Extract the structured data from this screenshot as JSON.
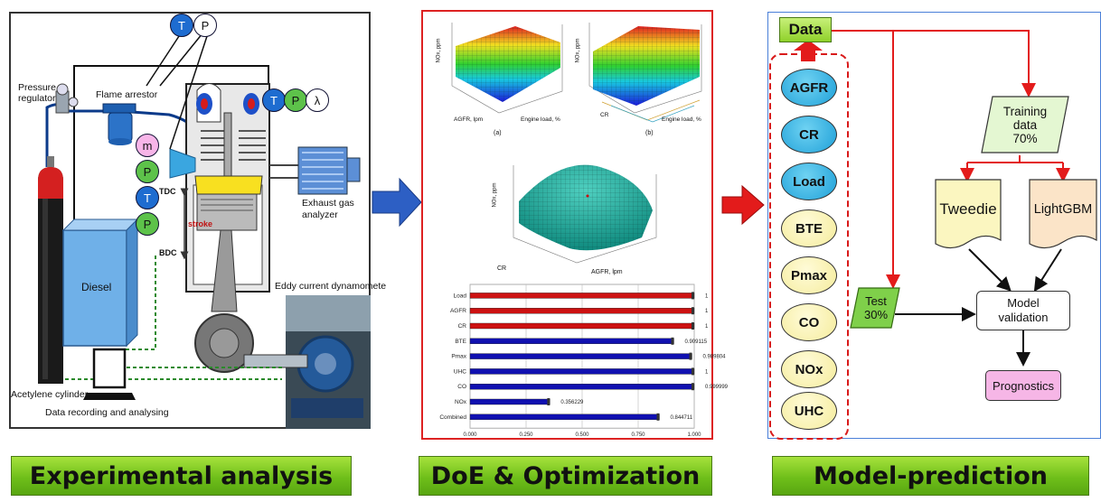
{
  "panel1": {
    "labels": {
      "pressure_regulator": "Pressure regulator",
      "flame_arrestor": "Flame arrestor",
      "exhaust_gas_analyzer": "Exhaust gas analyzer",
      "eddy_current_dynamometer": "Eddy current dynamomete",
      "diesel": "Diesel",
      "acetylene_cylinder": "Acetylene cylinder",
      "data_recording": "Data recording and analysing",
      "tdc": "TDC",
      "bdc": "BDC",
      "stroke": "stroke"
    },
    "sensors": {
      "t": "T",
      "p": "P",
      "m": "m",
      "lambda": "λ"
    }
  },
  "panel2": {
    "surface_a": {
      "caption": "(a)",
      "zlabel": "NOx, ppm",
      "xlabel": "AGFR, lpm",
      "ylabel": "Engine load, %"
    },
    "surface_b": {
      "caption": "(b)",
      "zlabel": "NOx, ppm",
      "xlabel": "CR",
      "ylabel": "Engine load, %"
    },
    "surface_c": {
      "zlabel": "NOx, ppm",
      "xlabel": "CR",
      "ylabel": "AGFR, lpm"
    }
  },
  "chart_data": {
    "type": "bar",
    "orientation": "horizontal",
    "categories": [
      "Load",
      "AGFR",
      "CR",
      "BTE",
      "Pmax",
      "UHC",
      "CO",
      "NOx",
      "Combined"
    ],
    "values": [
      1,
      1,
      1,
      0.909115,
      0.989804,
      1,
      0.999999,
      0.356229,
      0.844711
    ],
    "value_labels": [
      "1",
      "1",
      "1",
      "0.909115",
      "0.989804",
      "1",
      "0.999999",
      "0.356229",
      "0.844711"
    ],
    "bar_colors": [
      "#cc1111",
      "#cc1111",
      "#cc1111",
      "#1010b0",
      "#1010b0",
      "#1010b0",
      "#1010b0",
      "#1010b0",
      "#1010b0"
    ],
    "xticks": [
      "0.000",
      "0.250",
      "0.500",
      "0.750",
      "1.000"
    ],
    "xlim": [
      0,
      1
    ],
    "grid": true
  },
  "panel3": {
    "data_label": "Data",
    "inputs": [
      "AGFR",
      "CR",
      "Load"
    ],
    "outputs": [
      "BTE",
      "Pmax",
      "CO",
      "NOx",
      "UHC"
    ],
    "training": [
      "Training",
      "data",
      "70%"
    ],
    "test": [
      "Test",
      "30%"
    ],
    "tweedie": "Tweedie",
    "lightgbm": "LightGBM",
    "validation": [
      "Model",
      "validation"
    ],
    "prognostics": "Prognostics"
  },
  "footers": {
    "experimental": "Experimental analysis",
    "doe": "DoE & Optimization",
    "model": "Model-prediction"
  },
  "colors": {
    "arrow_blue": "#2d5fc4",
    "arrow_red": "#e31b1b",
    "footer_green": "#7cc52a"
  }
}
